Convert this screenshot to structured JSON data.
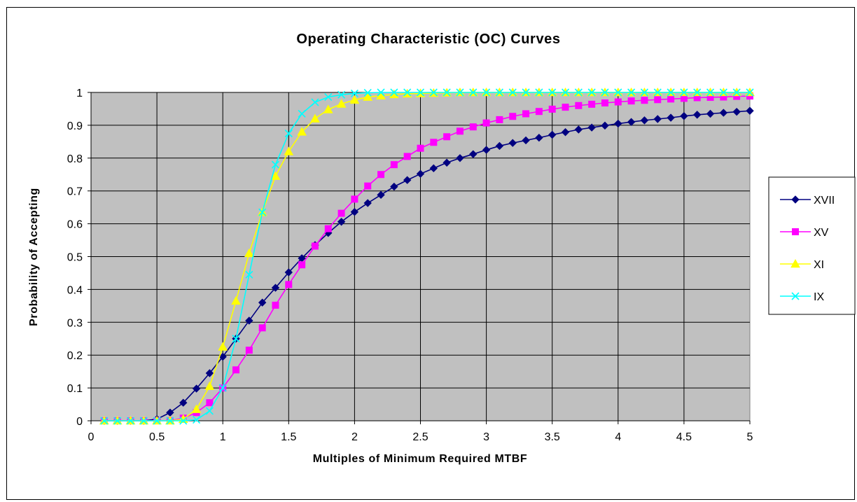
{
  "chart_data": {
    "type": "line",
    "title": "Operating Characteristic (OC) Curves",
    "xlabel": "Multiples of Minimum Required MTBF",
    "ylabel": "Probability of Accepting",
    "xlim": [
      0,
      5
    ],
    "ylim": [
      0,
      1
    ],
    "x_ticks": [
      "0",
      "0.5",
      "1",
      "1.5",
      "2",
      "2.5",
      "3",
      "3.5",
      "4",
      "4.5",
      "5"
    ],
    "y_ticks": [
      "0",
      "0.1",
      "0.2",
      "0.3",
      "0.4",
      "0.5",
      "0.6",
      "0.7",
      "0.8",
      "0.9",
      "1"
    ],
    "grid": true,
    "legend_position": "right",
    "plot_background": "#c0c0c0",
    "x": [
      0.1,
      0.2,
      0.3,
      0.4,
      0.5,
      0.6,
      0.7,
      0.8,
      0.9,
      1.0,
      1.1,
      1.2,
      1.3,
      1.4,
      1.5,
      1.6,
      1.7,
      1.8,
      1.9,
      2.0,
      2.1,
      2.2,
      2.3,
      2.4,
      2.5,
      2.6,
      2.7,
      2.8,
      2.9,
      3.0,
      3.1,
      3.2,
      3.3,
      3.4,
      3.5,
      3.6,
      3.7,
      3.8,
      3.9,
      4.0,
      4.1,
      4.2,
      4.3,
      4.4,
      4.5,
      4.6,
      4.7,
      4.8,
      4.9,
      5.0
    ],
    "series": [
      {
        "name": "XVII",
        "color": "#000080",
        "marker": "diamond",
        "values": [
          0,
          0,
          0,
          0,
          0.005,
          0.025,
          0.055,
          0.098,
          0.145,
          0.195,
          0.25,
          0.305,
          0.36,
          0.405,
          0.452,
          0.495,
          0.535,
          0.572,
          0.606,
          0.636,
          0.663,
          0.688,
          0.713,
          0.733,
          0.752,
          0.769,
          0.786,
          0.8,
          0.812,
          0.825,
          0.837,
          0.846,
          0.854,
          0.862,
          0.871,
          0.879,
          0.887,
          0.893,
          0.899,
          0.905,
          0.91,
          0.915,
          0.919,
          0.923,
          0.928,
          0.932,
          0.935,
          0.938,
          0.941,
          0.944
        ]
      },
      {
        "name": "XV",
        "color": "#ff00ff",
        "marker": "square",
        "values": [
          0,
          0,
          0,
          0,
          0,
          0,
          0.008,
          0.025,
          0.055,
          0.1,
          0.155,
          0.215,
          0.283,
          0.352,
          0.415,
          0.475,
          0.532,
          0.585,
          0.632,
          0.675,
          0.715,
          0.75,
          0.78,
          0.805,
          0.83,
          0.848,
          0.865,
          0.882,
          0.895,
          0.907,
          0.917,
          0.927,
          0.935,
          0.942,
          0.949,
          0.955,
          0.96,
          0.964,
          0.968,
          0.971,
          0.974,
          0.976,
          0.978,
          0.98,
          0.982,
          0.984,
          0.985,
          0.986,
          0.988,
          0.989
        ]
      },
      {
        "name": "XI",
        "color": "#ffff00",
        "marker": "triangle",
        "values": [
          0,
          0,
          0,
          0,
          0,
          0,
          0.005,
          0.035,
          0.105,
          0.225,
          0.365,
          0.51,
          0.635,
          0.745,
          0.82,
          0.88,
          0.92,
          0.948,
          0.965,
          0.977,
          0.986,
          0.99,
          0.994,
          0.996,
          0.997,
          0.998,
          0.999,
          1,
          1,
          1,
          1,
          1,
          1,
          1,
          1,
          1,
          1,
          1,
          1,
          1,
          1,
          1,
          1,
          1,
          1,
          1,
          1,
          1,
          1,
          1
        ]
      },
      {
        "name": "IX",
        "color": "#00ffff",
        "marker": "x",
        "values": [
          0,
          0,
          0,
          0,
          0,
          0,
          0,
          0.003,
          0.03,
          0.1,
          0.25,
          0.445,
          0.635,
          0.78,
          0.875,
          0.935,
          0.97,
          0.986,
          0.993,
          0.997,
          0.999,
          1,
          1,
          1,
          1,
          1,
          1,
          1,
          1,
          1,
          1,
          1,
          1,
          1,
          1,
          1,
          1,
          1,
          1,
          1,
          1,
          1,
          1,
          1,
          1,
          1,
          1,
          1,
          1,
          1
        ]
      }
    ]
  }
}
